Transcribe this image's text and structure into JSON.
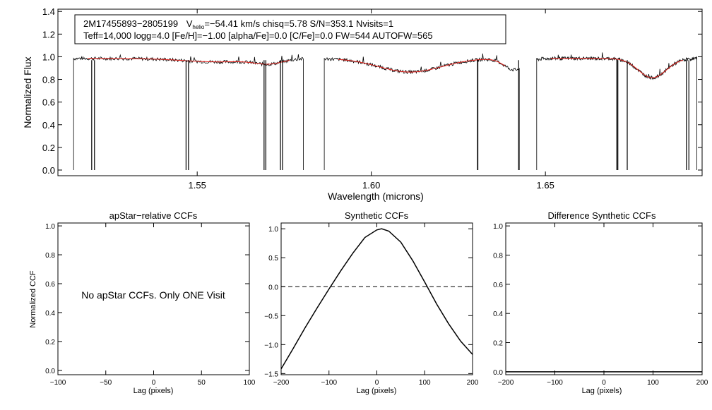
{
  "chart_data": [
    {
      "type": "line",
      "title_line1": {
        "star": "2M17455893−2805199",
        "v": "V",
        "v_sub": "helio",
        "rest": "=−54.41 km/s  chisq=5.78  S/N=353.1  Nvisits=1"
      },
      "title_line2": "Teff=14,000 logg=4.0 [Fe/H]=−1.00 [alpha/Fe]=0.0 [C/Fe]=0.0 FW=544 AUTOFW=565",
      "xlabel": "Wavelength (microns)",
      "ylabel": "Normalized Flux",
      "xlim": [
        1.51,
        1.695
      ],
      "ylim": [
        -0.05,
        1.42
      ],
      "xticks": [
        "1.55",
        "1.60",
        "1.65"
      ],
      "yticks": [
        "0.0",
        "0.2",
        "0.4",
        "0.6",
        "0.8",
        "1.0",
        "1.2",
        "1.4"
      ],
      "chips": [
        [
          1.5145,
          1.5805
        ],
        [
          1.5865,
          1.6425
        ],
        [
          1.6475,
          1.6935
        ]
      ],
      "spikes": [
        1.5197,
        1.5205,
        1.5468,
        1.5475,
        1.5692,
        1.5697,
        1.5739,
        1.5745,
        1.6305,
        1.6306,
        1.6423,
        1.6705,
        1.6708,
        1.6735,
        1.6905,
        1.6912
      ],
      "series": [
        {
          "name": "observed",
          "color": "#000000"
        },
        {
          "name": "model",
          "color": "#e8211b"
        }
      ]
    },
    {
      "type": "line",
      "title": "apStar−relative CCFs",
      "xlabel": "Lag (pixels)",
      "ylabel": "Normalized CCF",
      "xlim": [
        -100,
        100
      ],
      "ylim": [
        -0.03,
        1.02
      ],
      "xticks": [
        "−100",
        "−50",
        "0",
        "50",
        "100"
      ],
      "yticks": [
        "0.0",
        "0.2",
        "0.4",
        "0.6",
        "0.8",
        "1.0"
      ],
      "annotation": "No apStar CCFs.  Only ONE Visit"
    },
    {
      "type": "line",
      "title": "Synthetic CCFs",
      "xlabel": "Lag (pixels)",
      "ylabel": "",
      "xlim": [
        -200,
        200
      ],
      "ylim": [
        -1.52,
        1.1
      ],
      "xticks": [
        "−200",
        "−100",
        "0",
        "100",
        "200"
      ],
      "yticks": [
        "−1.5",
        "−1.0",
        "−0.5",
        "0.0",
        "0.5",
        "1.0"
      ],
      "series": [
        {
          "name": "CCF",
          "x": [
            -200,
            -175,
            -150,
            -125,
            -100,
            -75,
            -50,
            -25,
            0,
            10,
            25,
            50,
            75,
            100,
            125,
            150,
            175,
            200
          ],
          "y": [
            -1.42,
            -1.07,
            -0.71,
            -0.37,
            -0.04,
            0.28,
            0.58,
            0.85,
            0.98,
            1.0,
            0.96,
            0.77,
            0.45,
            0.08,
            -0.3,
            -0.64,
            -0.94,
            -1.17
          ]
        },
        {
          "name": "zero",
          "x": [
            -200,
            200
          ],
          "y": [
            0,
            0
          ],
          "dash": true
        }
      ]
    },
    {
      "type": "line",
      "title": "Difference Synthetic CCFs",
      "xlabel": "Lag (pixels)",
      "ylabel": "",
      "xlim": [
        -200,
        200
      ],
      "ylim": [
        -0.02,
        1.02
      ],
      "xticks": [
        "−200",
        "−100",
        "0",
        "100",
        "200"
      ],
      "yticks": [
        "0.0",
        "0.2",
        "0.4",
        "0.6",
        "0.8",
        "1.0"
      ],
      "series": [
        {
          "name": "difference",
          "x": [
            -200,
            200
          ],
          "y": [
            0,
            0
          ]
        }
      ]
    }
  ]
}
